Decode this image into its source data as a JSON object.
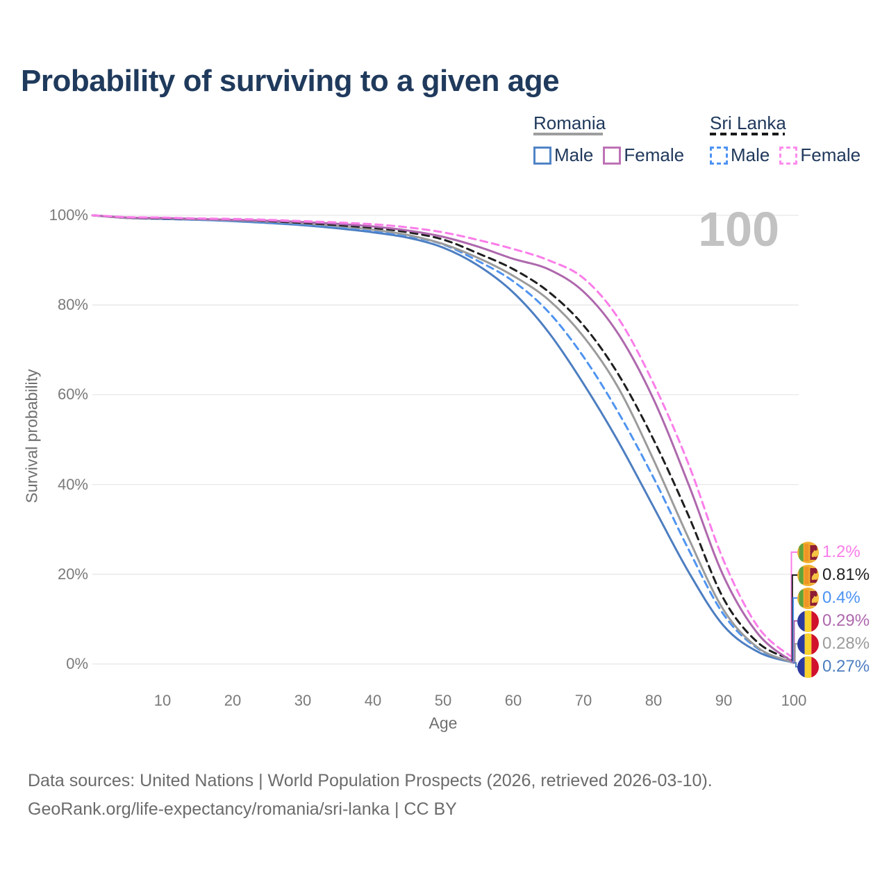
{
  "title": "Probability of surviving to a given age",
  "watermark": "100",
  "legend": {
    "groups": [
      {
        "name": "Romania",
        "line_style": "solid",
        "underline_color": "#9e9e9e",
        "items": [
          {
            "label": "Male",
            "color": "#5083c6"
          },
          {
            "label": "Female",
            "color": "#bd72b5"
          }
        ]
      },
      {
        "name": "Sri Lanka",
        "line_style": "dashed",
        "underline_color": "#1a1a1a",
        "items": [
          {
            "label": "Male",
            "color": "#4d93f2"
          },
          {
            "label": "Female",
            "color": "#fc8cec"
          }
        ]
      }
    ]
  },
  "chart_data": {
    "type": "line",
    "title": "Probability of surviving to a given age",
    "xlabel": "Age",
    "ylabel": "Survival probability",
    "x_ticks": [
      10,
      20,
      30,
      40,
      50,
      60,
      70,
      80,
      90,
      100
    ],
    "y_ticks": [
      "100%",
      "80%",
      "60%",
      "40%",
      "20%",
      "0%"
    ],
    "xlim": [
      0,
      100
    ],
    "ylim": [
      0,
      100
    ],
    "grid": "horizontal",
    "legend_position": "top-right",
    "ages": [
      0,
      5,
      10,
      15,
      20,
      25,
      30,
      35,
      40,
      45,
      50,
      55,
      60,
      65,
      70,
      75,
      80,
      85,
      90,
      95,
      100
    ],
    "series": [
      {
        "name": "Romania Male",
        "country": "Romania",
        "sex": "Male",
        "color": "#4d7ec1",
        "dash": false,
        "end_label": "0.27%",
        "values": [
          100,
          99.4,
          99.2,
          99.0,
          98.7,
          98.3,
          97.8,
          97.1,
          96.2,
          95.0,
          92.8,
          88.8,
          82.8,
          74.0,
          62.5,
          49.5,
          35.0,
          20.5,
          8.5,
          2.6,
          0.27
        ]
      },
      {
        "name": "Sri Lanka Male",
        "country": "Sri Lanka",
        "sex": "Male",
        "color": "#4f94f0",
        "dash": true,
        "end_label": "0.4%",
        "values": [
          100,
          99.4,
          99.2,
          99.0,
          98.8,
          98.4,
          98.0,
          97.4,
          96.6,
          95.4,
          93.5,
          89.8,
          85.3,
          78.5,
          68.5,
          56.0,
          41.5,
          25.5,
          11.0,
          3.3,
          0.4
        ]
      },
      {
        "name": "Romania Both sexes",
        "country": "Romania",
        "sex": "Both",
        "color": "#9b9b9b",
        "dash": false,
        "end_label": "0.28%",
        "values": [
          100,
          99.4,
          99.3,
          99.1,
          98.9,
          98.6,
          98.2,
          97.6,
          96.8,
          95.6,
          93.6,
          90.5,
          86.5,
          81.2,
          73.0,
          61.5,
          45.5,
          28.0,
          12.0,
          3.5,
          0.28
        ]
      },
      {
        "name": "Sri Lanka Both sexes",
        "country": "Sri Lanka",
        "sex": "Both",
        "color": "#1f1f1f",
        "dash": true,
        "end_label": "0.81%",
        "values": [
          100,
          99.5,
          99.3,
          99.2,
          99.0,
          98.7,
          98.3,
          97.8,
          97.2,
          96.2,
          94.6,
          91.5,
          88.0,
          83.0,
          75.5,
          64.5,
          50.0,
          33.0,
          14.5,
          4.6,
          0.81
        ]
      },
      {
        "name": "Romania Female",
        "country": "Romania",
        "sex": "Female",
        "color": "#ae68ad",
        "dash": false,
        "end_label": "0.29%",
        "values": [
          100,
          99.5,
          99.4,
          99.2,
          99.0,
          98.8,
          98.5,
          98.1,
          97.5,
          96.6,
          95.2,
          93.0,
          90.3,
          88.0,
          83.0,
          73.5,
          59.0,
          40.0,
          19.5,
          6.5,
          0.29
        ]
      },
      {
        "name": "Sri Lanka Female",
        "country": "Sri Lanka",
        "sex": "Female",
        "color": "#fa7de9",
        "dash": true,
        "end_label": "1.2%",
        "values": [
          100,
          99.6,
          99.5,
          99.3,
          99.2,
          99.0,
          98.7,
          98.4,
          98.0,
          97.3,
          96.2,
          94.5,
          92.5,
          90.0,
          86.0,
          77.0,
          62.5,
          44.5,
          23.0,
          8.0,
          1.2
        ]
      }
    ]
  },
  "end_labels": [
    {
      "value": "1.2%",
      "color": "#fa7de9",
      "flag": "sri-lanka",
      "series": "Sri Lanka Female"
    },
    {
      "value": "0.81%",
      "color": "#1f1f1f",
      "flag": "sri-lanka",
      "series": "Sri Lanka Both sexes"
    },
    {
      "value": "0.4%",
      "color": "#4d93f2",
      "flag": "sri-lanka",
      "series": "Sri Lanka Male"
    },
    {
      "value": "0.29%",
      "color": "#ae68ad",
      "flag": "romania",
      "series": "Romania Female"
    },
    {
      "value": "0.28%",
      "color": "#9b9b9b",
      "flag": "romania",
      "series": "Romania Both sexes"
    },
    {
      "value": "0.27%",
      "color": "#4d7ec1",
      "flag": "romania",
      "series": "Romania Male"
    }
  ],
  "footer": {
    "line1": "Data sources: United Nations | World Population Prospects (2026, retrieved 2026-03-10).",
    "line2": "GeoRank.org/life-expectancy/romania/sri-lanka | CC BY"
  }
}
